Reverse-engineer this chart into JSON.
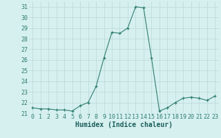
{
  "title": "",
  "xlabel": "Humidex (Indice chaleur)",
  "x": [
    0,
    1,
    2,
    3,
    4,
    5,
    6,
    7,
    8,
    9,
    10,
    11,
    12,
    13,
    14,
    15,
    16,
    17,
    18,
    19,
    20,
    21,
    22,
    23
  ],
  "y": [
    21.5,
    21.4,
    21.4,
    21.3,
    21.3,
    21.2,
    21.7,
    22.0,
    23.5,
    26.2,
    28.6,
    28.5,
    29.0,
    31.0,
    30.9,
    26.2,
    21.2,
    21.5,
    22.0,
    22.4,
    22.5,
    22.4,
    22.2,
    22.6
  ],
  "line_color": "#2d7d6e",
  "bg_color": "#d6f0ef",
  "grid_color": "#b8d8d4",
  "ylim": [
    21.0,
    31.5
  ],
  "yticks": [
    21,
    22,
    23,
    24,
    25,
    26,
    27,
    28,
    29,
    30,
    31
  ],
  "xticks": [
    0,
    1,
    2,
    3,
    4,
    5,
    6,
    7,
    8,
    9,
    10,
    11,
    12,
    13,
    14,
    15,
    16,
    17,
    18,
    19,
    20,
    21,
    22,
    23
  ],
  "xlabel_fontsize": 7,
  "tick_fontsize": 6,
  "title_fontsize": 7
}
